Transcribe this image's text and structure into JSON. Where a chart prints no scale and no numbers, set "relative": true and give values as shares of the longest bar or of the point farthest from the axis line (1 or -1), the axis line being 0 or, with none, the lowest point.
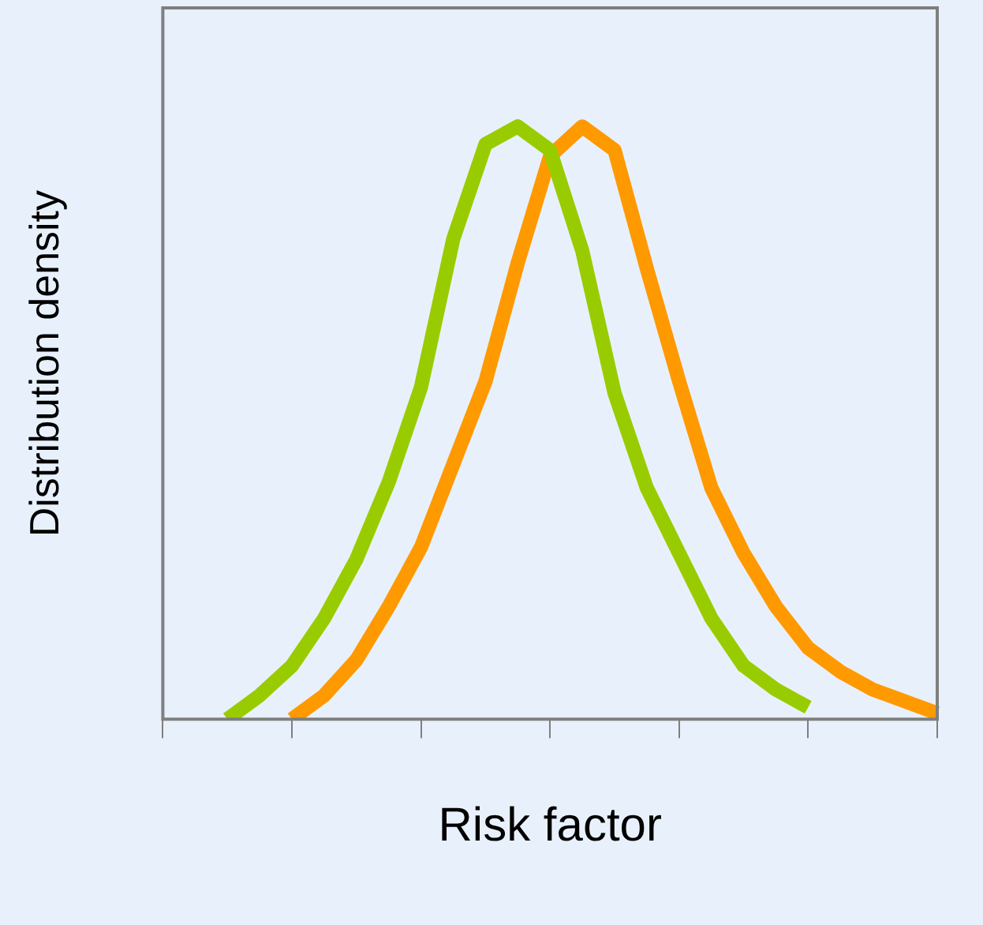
{
  "chart_data": {
    "type": "line",
    "relative": true,
    "xlabel": "Risk factor",
    "ylabel": "Distribution density",
    "categories": [
      null,
      null,
      null,
      null,
      null,
      null,
      null,
      null,
      null,
      null,
      null,
      null,
      null,
      null,
      null,
      null,
      null,
      null,
      null,
      null,
      null,
      null,
      null,
      null,
      null
    ],
    "series": [
      {
        "color": "#99cc00",
        "values": [
          null,
          null,
          0,
          0.04,
          0.09,
          0.17,
          0.27,
          0.4,
          0.56,
          0.81,
          0.97,
          1.0,
          0.96,
          0.79,
          0.55,
          0.39,
          0.28,
          0.17,
          0.09,
          0.05,
          0.02,
          null,
          null,
          null,
          null
        ]
      },
      {
        "color": "#ff9900",
        "values": [
          null,
          null,
          null,
          null,
          0,
          0.04,
          0.1,
          0.19,
          0.29,
          0.43,
          0.57,
          0.77,
          0.95,
          1.0,
          0.96,
          0.76,
          0.57,
          0.39,
          0.28,
          0.19,
          0.12,
          0.08,
          0.05,
          0.03,
          0.01
        ]
      }
    ],
    "grid": false,
    "legend": false,
    "marker": "none",
    "line_style": "solid"
  }
}
